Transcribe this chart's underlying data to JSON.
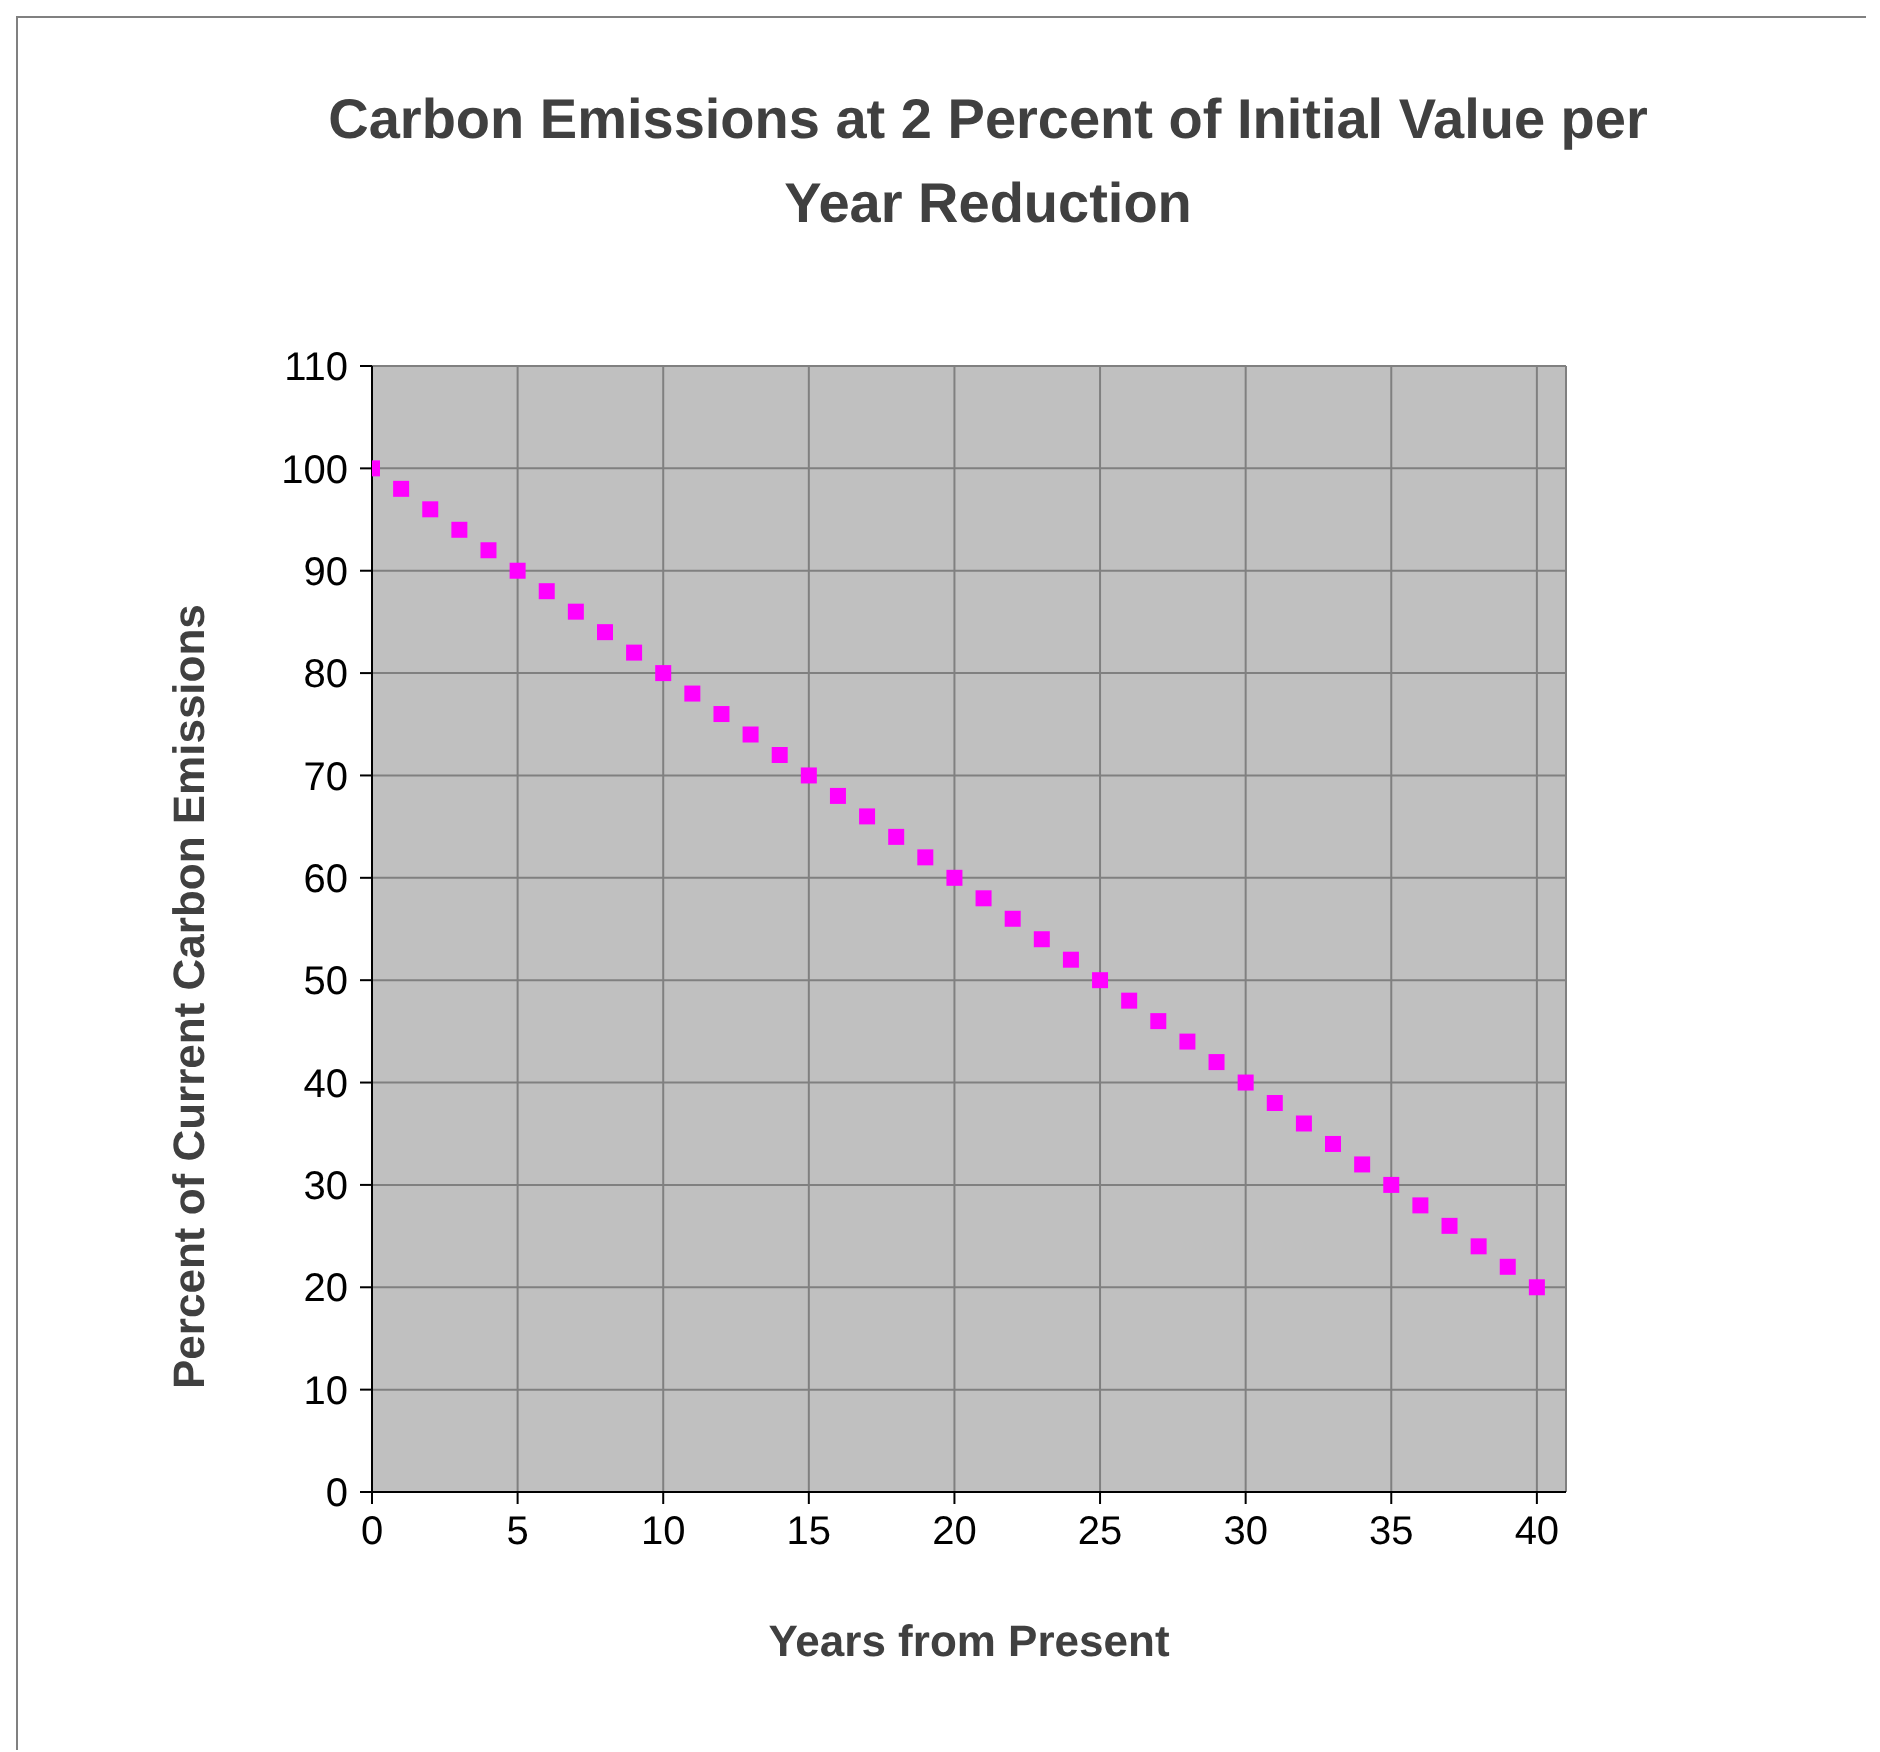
{
  "chart_data": {
    "type": "scatter",
    "title": "Carbon Emissions at 2 Percent of Initial Value per Year Reduction",
    "xlabel": "Years from Present",
    "ylabel": "Percent of Current Carbon Emissions",
    "x": [
      0,
      1,
      2,
      3,
      4,
      5,
      6,
      7,
      8,
      9,
      10,
      11,
      12,
      13,
      14,
      15,
      16,
      17,
      18,
      19,
      20,
      21,
      22,
      23,
      24,
      25,
      26,
      27,
      28,
      29,
      30,
      31,
      32,
      33,
      34,
      35,
      36,
      37,
      38,
      39,
      40
    ],
    "series": [
      {
        "color": "#ff00ff",
        "values": [
          100,
          98,
          96,
          94,
          92,
          90,
          88,
          86,
          84,
          82,
          80,
          78,
          76,
          74,
          72,
          70,
          68,
          66,
          64,
          62,
          60,
          58,
          56,
          54,
          52,
          50,
          48,
          46,
          44,
          42,
          40,
          38,
          36,
          34,
          32,
          30,
          28,
          26,
          24,
          22,
          20
        ]
      }
    ],
    "xlim": [
      0,
      41
    ],
    "xticks": [
      0,
      5,
      10,
      15,
      20,
      25,
      30,
      35,
      40
    ],
    "ylim": [
      0,
      110
    ],
    "yticks": [
      0,
      10,
      20,
      30,
      40,
      50,
      60,
      70,
      80,
      90,
      100,
      110
    ],
    "grid": true,
    "marker": "square"
  }
}
